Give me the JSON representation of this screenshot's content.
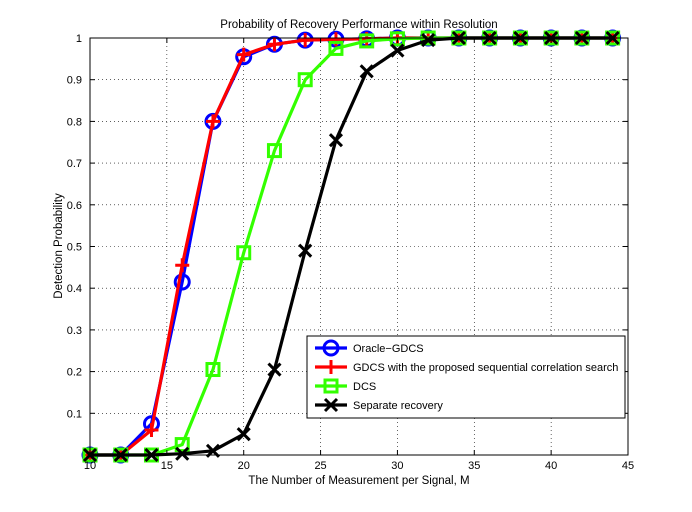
{
  "chart_data": {
    "type": "line",
    "title": "Probability of Recovery Performance within Resolution",
    "xlabel": "The Number of Measurement per Signal, M",
    "ylabel": "Detection Probability",
    "xlim": [
      10,
      45
    ],
    "ylim": [
      0,
      1
    ],
    "xticks": [
      10,
      15,
      20,
      25,
      30,
      35,
      40,
      45
    ],
    "yticks": [
      0,
      0.1,
      0.2,
      0.3,
      0.4,
      0.5,
      0.6,
      0.7,
      0.8,
      0.9,
      1
    ],
    "xtick_labels": [
      "10",
      "15",
      "20",
      "25",
      "30",
      "35",
      "40",
      "45"
    ],
    "ytick_labels": [
      "",
      "0.1",
      "0.2",
      "0.3",
      "0.4",
      "0.5",
      "0.6",
      "0.7",
      "0.8",
      "0.9",
      "1"
    ],
    "grid": true,
    "legend_position": "bottom-right",
    "x": [
      10,
      12,
      14,
      16,
      18,
      20,
      22,
      24,
      26,
      28,
      30,
      32,
      34,
      36,
      38,
      40,
      42,
      44
    ],
    "series": [
      {
        "name": "Oracle−GDCS",
        "color": "#0000ff",
        "marker": "circle",
        "values": [
          0,
          0,
          0.075,
          0.415,
          0.8,
          0.955,
          0.985,
          0.995,
          0.997,
          0.998,
          1,
          1,
          1,
          1,
          1,
          1,
          1,
          1
        ]
      },
      {
        "name": "GDCS with the proposed sequential correlation search",
        "color": "#ff0000",
        "marker": "plus",
        "values": [
          0,
          0,
          0.06,
          0.455,
          0.8,
          0.96,
          0.985,
          0.995,
          0.997,
          0.998,
          1,
          1,
          1,
          1,
          1,
          1,
          1,
          1
        ]
      },
      {
        "name": "DCS",
        "color": "#33ff00",
        "marker": "square",
        "values": [
          0,
          0,
          0,
          0.025,
          0.205,
          0.485,
          0.73,
          0.9,
          0.975,
          0.993,
          0.998,
          1,
          1,
          1,
          1,
          1,
          1,
          1
        ]
      },
      {
        "name": "Separate recovery",
        "color": "#000000",
        "marker": "x",
        "values": [
          0,
          0,
          0,
          0.003,
          0.01,
          0.05,
          0.205,
          0.49,
          0.755,
          0.92,
          0.97,
          0.995,
          1,
          1,
          1,
          1,
          1,
          1
        ]
      }
    ]
  }
}
